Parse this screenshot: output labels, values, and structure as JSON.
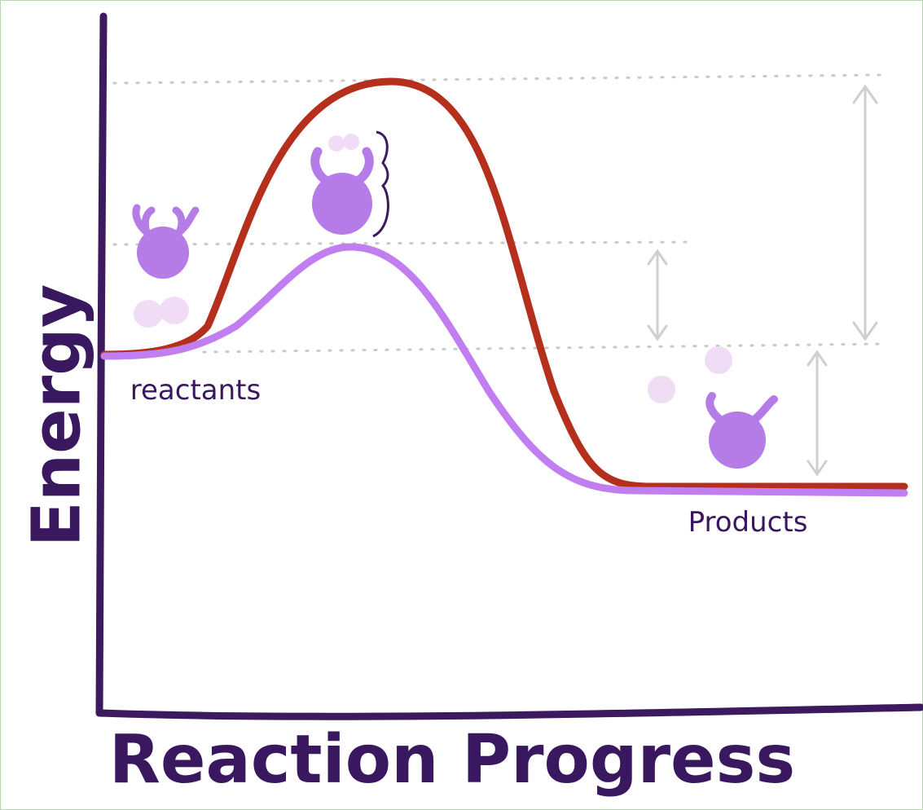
{
  "axes": {
    "y_label": "Energy",
    "x_label": "Reaction Progress"
  },
  "labels": {
    "reactants": "reactants",
    "products": "Products"
  }
}
